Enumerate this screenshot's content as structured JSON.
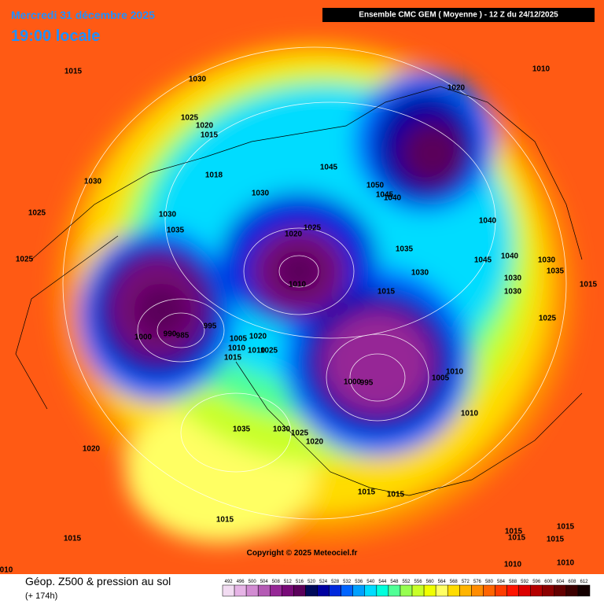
{
  "header": {
    "date": "Mercredi 31 décembre 2025",
    "time": "19:00 locale",
    "model": "Ensemble CMC GEM  ( Moyenne )  - 12 Z du 24/12/2025"
  },
  "copyright": "Copyright © 2025 Meteociel.fr",
  "footer": {
    "title": "Géop. Z500 & pression au sol",
    "lead": "(+ 174h)"
  },
  "scale": {
    "values": [
      492,
      496,
      500,
      504,
      508,
      512,
      516,
      520,
      524,
      528,
      532,
      536,
      540,
      544,
      548,
      552,
      556,
      560,
      564,
      568,
      572,
      576,
      580,
      584,
      588,
      592,
      596,
      600,
      604,
      608,
      612
    ],
    "colors": [
      "#f2dcf2",
      "#e6b4e6",
      "#d28cd2",
      "#b45ab4",
      "#962896",
      "#780a78",
      "#5a005a",
      "#000a5a",
      "#0000a0",
      "#0028dc",
      "#0064ff",
      "#00a0ff",
      "#00dcff",
      "#00ffdc",
      "#50ff96",
      "#96ff50",
      "#c8ff28",
      "#f0ff00",
      "#ffff64",
      "#ffdc00",
      "#ffb400",
      "#ff8c00",
      "#ff6400",
      "#ff3c00",
      "#ff1400",
      "#dc0000",
      "#b40000",
      "#8c0000",
      "#640000",
      "#3c0000",
      "#140000"
    ]
  },
  "isobars": [
    "1015",
    "1030",
    "1025",
    "1020",
    "1015",
    "1018",
    "1030",
    "1025",
    "1030",
    "1035",
    "1025",
    "1030",
    "1020",
    "1025",
    "1045",
    "1050",
    "1045",
    "1040",
    "1020",
    "1010",
    "1040",
    "1035",
    "1030",
    "1045",
    "1040",
    "1030",
    "1035",
    "1030",
    "1030",
    "1015",
    "1025",
    "1010",
    "1015",
    "1000",
    "990",
    "985",
    "995",
    "1005",
    "1010",
    "1020",
    "1015",
    "1010",
    "1025",
    "1010",
    "1005",
    "1000",
    "995",
    "1010",
    "1035",
    "1030",
    "1025",
    "1020",
    "1020",
    "1015",
    "1015",
    "1015",
    "1015",
    "1015",
    "1015",
    "1015",
    "1015",
    "010",
    "1010",
    "1010"
  ]
}
